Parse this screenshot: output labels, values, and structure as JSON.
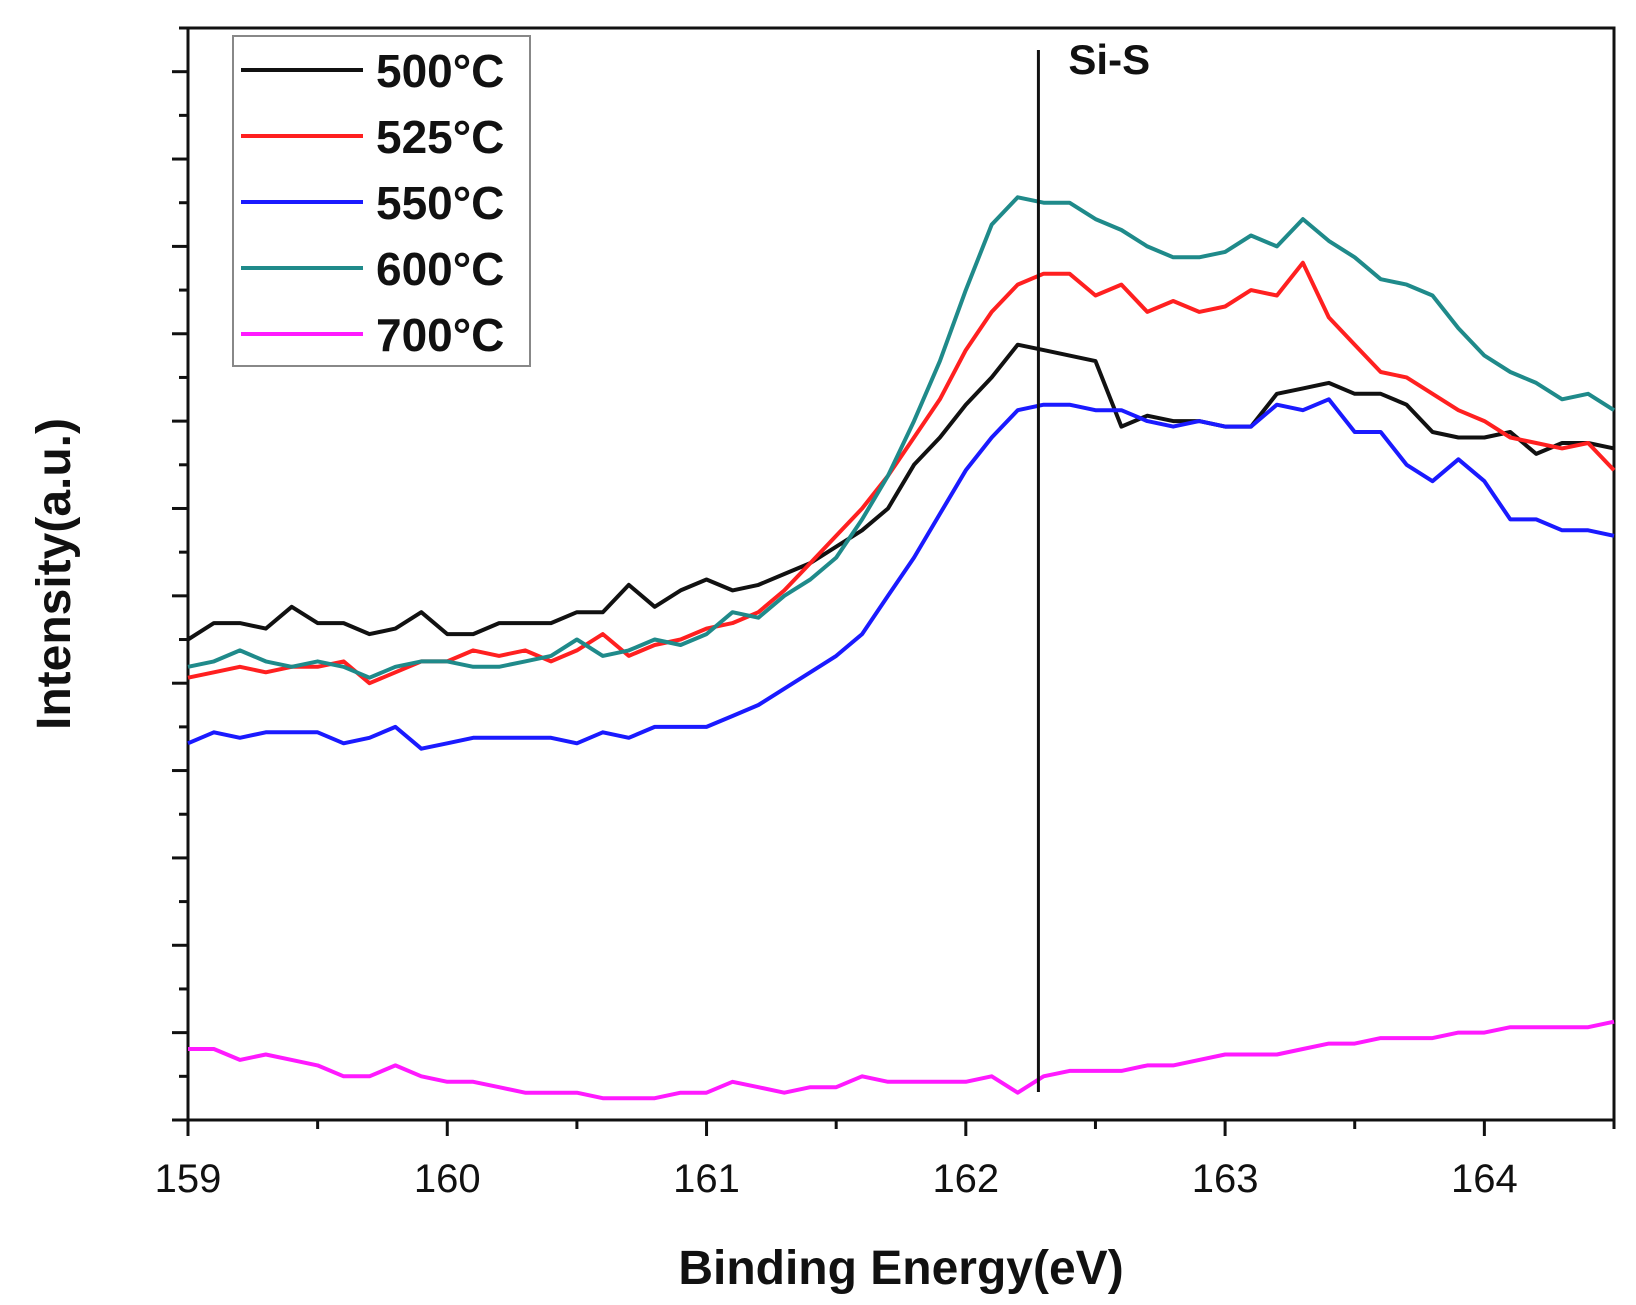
{
  "chart_data": {
    "type": "line",
    "title": "",
    "xlabel": "Binding Energy(eV)",
    "ylabel": "Intensity(a.u.)",
    "xlim": [
      159,
      164.5
    ],
    "ylim": [
      0,
      100
    ],
    "grid": false,
    "legend_position": "top-left",
    "x_ticks": [
      159,
      160,
      161,
      162,
      163,
      164
    ],
    "x_tick_labels": [
      "159",
      "160",
      "161",
      "162",
      "163",
      "164"
    ],
    "annotations": [
      {
        "text": "Si-S",
        "x": 162.28
      }
    ],
    "x": [
      159.0,
      159.1,
      159.2,
      159.3,
      159.4,
      159.5,
      159.6,
      159.7,
      159.8,
      159.9,
      160.0,
      160.1,
      160.2,
      160.3,
      160.4,
      160.5,
      160.6,
      160.7,
      160.8,
      160.9,
      161.0,
      161.1,
      161.2,
      161.3,
      161.4,
      161.5,
      161.6,
      161.7,
      161.8,
      161.9,
      162.0,
      162.1,
      162.2,
      162.3,
      162.4,
      162.5,
      162.6,
      162.7,
      162.8,
      162.9,
      163.0,
      163.1,
      163.2,
      163.3,
      163.4,
      163.5,
      163.6,
      163.7,
      163.8,
      163.9,
      164.0,
      164.1,
      164.2,
      164.3,
      164.4,
      164.5
    ],
    "series": [
      {
        "name": "500°C",
        "color": "#111111",
        "values": [
          44,
          45.5,
          45.5,
          45,
          47,
          45.5,
          45.5,
          44.5,
          45,
          46.5,
          44.5,
          44.5,
          45.5,
          45.5,
          45.5,
          46.5,
          46.5,
          49,
          47,
          48.5,
          49.5,
          48.5,
          49,
          50,
          51,
          52.5,
          54,
          56,
          60,
          62.5,
          65.5,
          68,
          71,
          70.5,
          70,
          69.5,
          63.5,
          64.5,
          64,
          64,
          63.5,
          63.5,
          66.5,
          67,
          67.5,
          66.5,
          66.5,
          65.5,
          63,
          62.5,
          62.5,
          63,
          61,
          62,
          62,
          61.5
        ]
      },
      {
        "name": "525°C",
        "color": "#ff2020",
        "values": [
          40.5,
          41,
          41.5,
          41,
          41.5,
          41.5,
          42,
          40,
          41,
          42,
          42,
          43,
          42.5,
          43,
          42,
          43,
          44.5,
          42.5,
          43.5,
          44,
          45,
          45.5,
          46.5,
          48.5,
          51,
          53.5,
          56,
          59,
          62.5,
          66,
          70.5,
          74,
          76.5,
          77.5,
          77.5,
          75.5,
          76.5,
          74,
          75,
          74,
          74.5,
          76,
          75.5,
          78.5,
          73.5,
          71,
          68.5,
          68,
          66.5,
          65,
          64,
          62.5,
          62,
          61.5,
          62,
          59.5
        ]
      },
      {
        "name": "550°C",
        "color": "#1a1aff",
        "values": [
          34.5,
          35.5,
          35,
          35.5,
          35.5,
          35.5,
          34.5,
          35,
          36,
          34,
          34.5,
          35,
          35,
          35,
          35,
          34.5,
          35.5,
          35,
          36,
          36,
          36,
          37,
          38,
          39.5,
          41,
          42.5,
          44.5,
          48,
          51.5,
          55.5,
          59.5,
          62.5,
          65,
          65.5,
          65.5,
          65,
          65,
          64,
          63.5,
          64,
          63.5,
          63.5,
          65.5,
          65,
          66,
          63,
          63,
          60,
          58.5,
          60.5,
          58.5,
          55,
          55,
          54,
          54,
          53.5
        ]
      },
      {
        "name": "600°C",
        "color": "#1f8a8a",
        "values": [
          41.5,
          42,
          43,
          42,
          41.5,
          42,
          41.5,
          40.5,
          41.5,
          42,
          42,
          41.5,
          41.5,
          42,
          42.5,
          44,
          42.5,
          43,
          44,
          43.5,
          44.5,
          46.5,
          46,
          48,
          49.5,
          51.5,
          55,
          59,
          64,
          69.5,
          76,
          82,
          84.5,
          84,
          84,
          82.5,
          81.5,
          80,
          79,
          79,
          79.5,
          81,
          80,
          82.5,
          80.5,
          79,
          77,
          76.5,
          75.5,
          72.5,
          70,
          68.5,
          67.5,
          66,
          66.5,
          65
        ]
      },
      {
        "name": "700°C",
        "color": "#ff1aff",
        "values": [
          6.5,
          6.5,
          5.5,
          6,
          5.5,
          5,
          4,
          4,
          5,
          4,
          3.5,
          3.5,
          3,
          2.5,
          2.5,
          2.5,
          2,
          2,
          2,
          2.5,
          2.5,
          3.5,
          3,
          2.5,
          3,
          3,
          4,
          3.5,
          3.5,
          3.5,
          3.5,
          4,
          2.5,
          4,
          4.5,
          4.5,
          4.5,
          5,
          5,
          5.5,
          6,
          6,
          6,
          6.5,
          7,
          7,
          7.5,
          7.5,
          7.5,
          8,
          8,
          8.5,
          8.5,
          8.5,
          8.5,
          9
        ]
      }
    ]
  }
}
